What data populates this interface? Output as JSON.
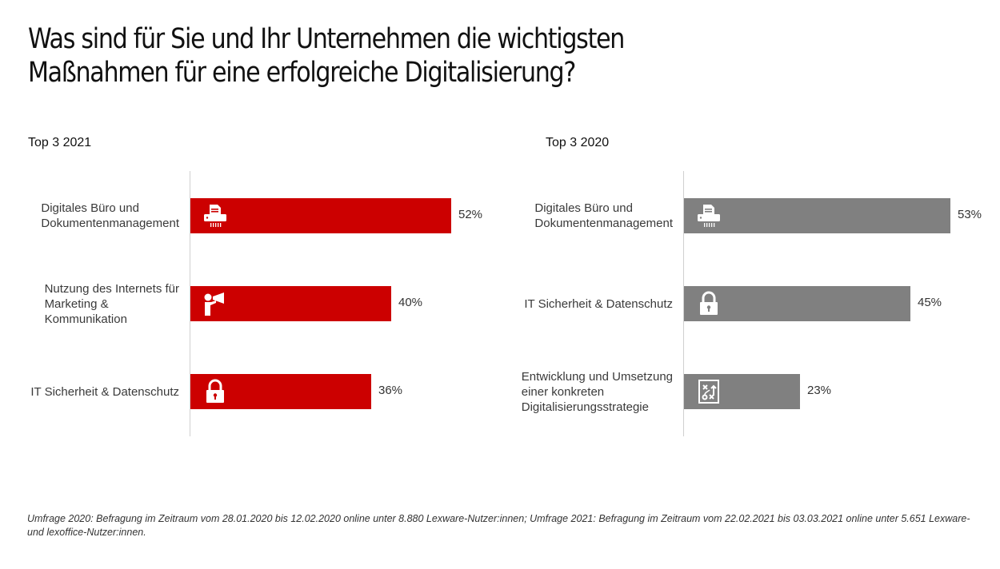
{
  "title": {
    "line1": "Was sind für Sie und Ihr Unternehmen die wichtigsten",
    "line2": "Maßnahmen für eine erfolgreiche Digitalisierung?"
  },
  "colors": {
    "red": "#cc0000",
    "gray": "#808080"
  },
  "chart_data": [
    {
      "type": "bar",
      "orientation": "horizontal",
      "title": "Top 3 2021",
      "color": "#cc0000",
      "categories": [
        "Digitales Büro und Dokumentenmanagement",
        "Nutzung des Internets für Marketing & Kommunikation",
        "IT Sicherheit & Datenschutz"
      ],
      "label_lines": [
        [
          "Digitales Büro und",
          "Dokumentenmanagement"
        ],
        [
          "Nutzung des Internets für",
          "Marketing &",
          "Kommunikation"
        ],
        [
          "IT Sicherheit & Datenschutz"
        ]
      ],
      "icons": [
        "document-shredder-icon",
        "megaphone-person-icon",
        "padlock-icon"
      ],
      "values": [
        52,
        40,
        36
      ],
      "value_labels": [
        "52%",
        "40%",
        "36%"
      ],
      "unit": "%",
      "xlim": [
        0,
        60
      ]
    },
    {
      "type": "bar",
      "orientation": "horizontal",
      "title": "Top 3 2020",
      "color": "#808080",
      "categories": [
        "Digitales Büro und Dokumentenmanagement",
        "IT Sicherheit & Datenschutz",
        "Entwicklung und Umsetzung einer konkreten Digitalisierungsstrategie"
      ],
      "label_lines": [
        [
          "Digitales Büro und",
          "Dokumentenmanagement"
        ],
        [
          "IT Sicherheit & Datenschutz"
        ],
        [
          "Entwicklung und Umsetzung",
          "einer konkreten",
          "Digitalisierungsstrategie"
        ]
      ],
      "icons": [
        "document-shredder-icon",
        "padlock-icon",
        "strategy-board-icon"
      ],
      "values": [
        53,
        45,
        23
      ],
      "value_labels": [
        "53%",
        "45%",
        "23%"
      ],
      "unit": "%",
      "xlim": [
        0,
        60
      ]
    }
  ],
  "footnote": "Umfrage 2020: Befragung im Zeitraum vom 28.01.2020 bis 12.02.2020 online unter 8.880 Lexware-Nutzer:innen; Umfrage 2021: Befragung im Zeitraum vom 22.02.2021 bis 03.03.2021 online unter 5.651 Lexware- und lexoffice-Nutzer:innen."
}
